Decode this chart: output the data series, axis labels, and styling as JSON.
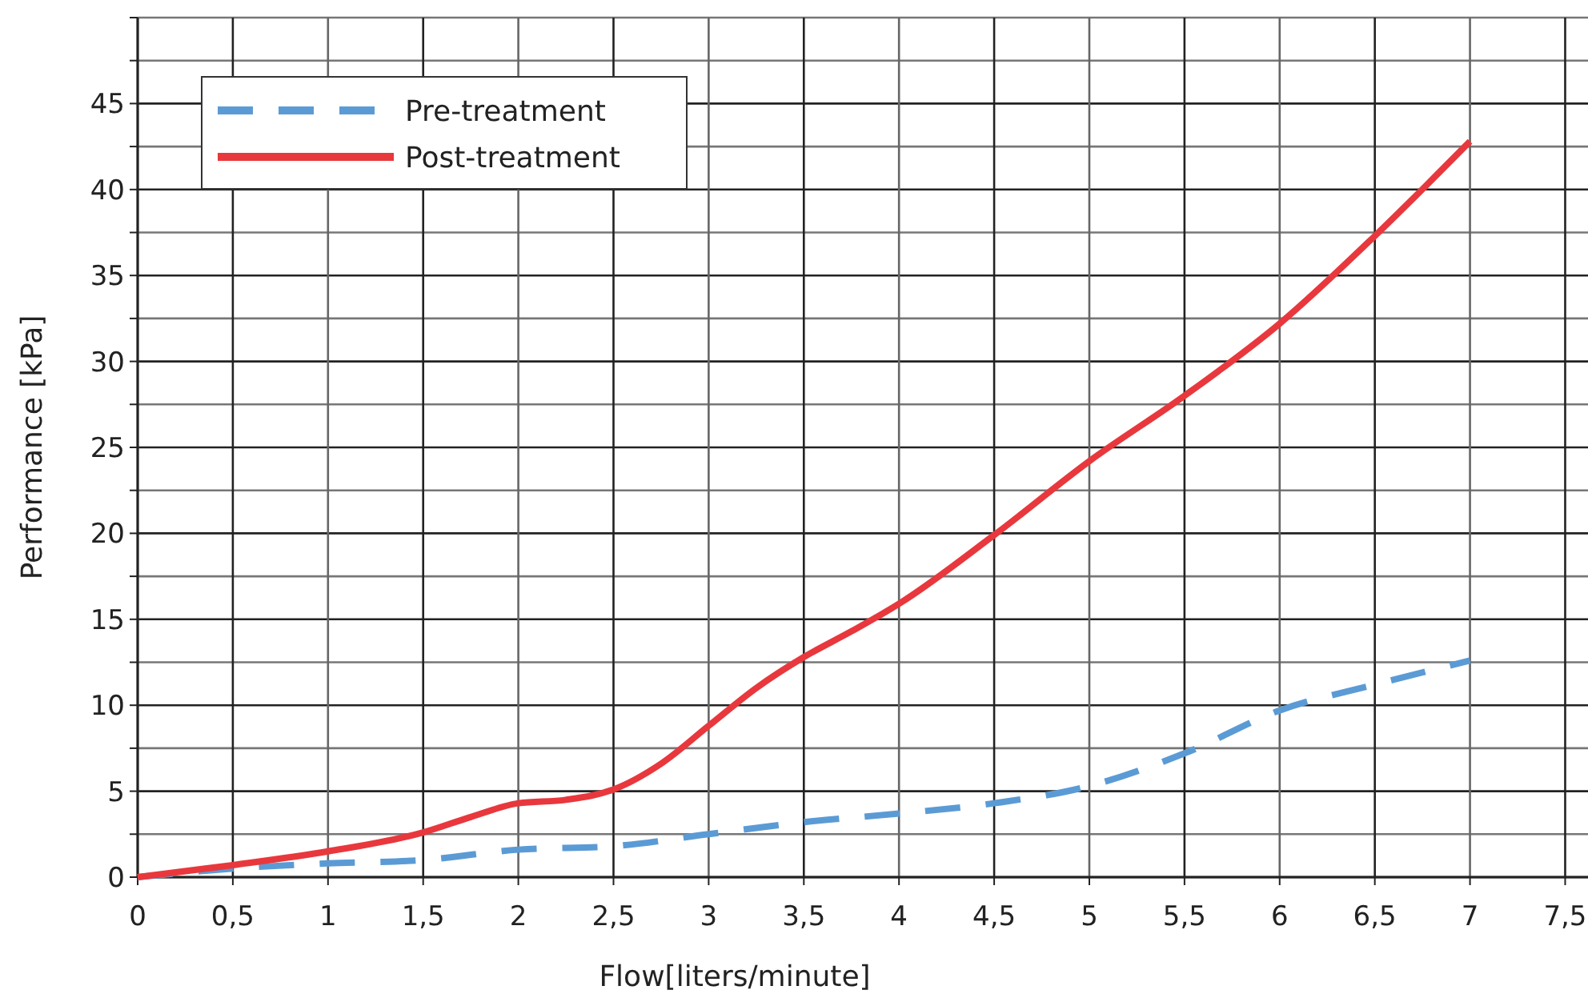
{
  "chart_data": {
    "type": "line",
    "xlabel": "Flow[liters/minute]",
    "ylabel": "Performance [kPa]",
    "xlim": [
      0,
      7.62
    ],
    "xticks": [
      0,
      {
        "value": 0.5,
        "label": "0,5"
      },
      1,
      {
        "value": 1.5,
        "label": "1,5"
      },
      2,
      {
        "value": 2.5,
        "label": "2,5"
      },
      3,
      {
        "value": 3.5,
        "label": "3,5"
      },
      4,
      {
        "value": 4.5,
        "label": "4,5"
      },
      5,
      {
        "value": 5.5,
        "label": "5,5"
      },
      6,
      {
        "value": 6.5,
        "label": "6,5"
      },
      7,
      {
        "value": 7.5,
        "label": "7,5"
      }
    ],
    "ylim": [
      0,
      50
    ],
    "yticks": [
      0,
      {
        "value": 2.5,
        "label": null
      },
      5,
      {
        "value": 7.5,
        "label": null
      },
      10,
      {
        "value": 12.5,
        "label": null
      },
      15,
      {
        "value": 17.5,
        "label": null
      },
      20,
      {
        "value": 22.5,
        "label": null
      },
      25,
      {
        "value": 27.5,
        "label": null
      },
      30,
      {
        "value": 32.5,
        "label": null
      },
      35,
      {
        "value": 37.5,
        "label": null
      },
      40,
      {
        "value": 42.5,
        "label": null
      },
      45,
      {
        "value": 47.5,
        "label": null
      },
      {
        "value": 50,
        "label": null
      }
    ],
    "grid": true,
    "legend": "top left",
    "marker": "none",
    "series": [
      {
        "name": "Pre-treatment",
        "color": "#5b9bd5",
        "line_style": "dashed",
        "x": [
          0,
          0.5,
          1,
          1.5,
          2,
          2.5,
          3,
          3.5,
          4,
          4.5,
          5,
          5.5,
          6,
          6.5,
          7
        ],
        "values": [
          0,
          0.5,
          0.8,
          1,
          1.6,
          1.8,
          2.5,
          3.2,
          3.7,
          4.3,
          5.3,
          7.2,
          9.7,
          11.2,
          12.6
        ]
      },
      {
        "name": "Post-treatment",
        "color": "#e8383d",
        "line_style": "solid",
        "x": [
          0,
          0.5,
          1,
          1.5,
          1.75,
          2,
          2.25,
          2.5,
          2.75,
          3,
          3.25,
          3.5,
          3.75,
          4,
          4.5,
          5,
          5.5,
          6,
          6.5,
          7
        ],
        "values": [
          0,
          0.7,
          1.5,
          2.6,
          3.5,
          4.3,
          4.5,
          5.1,
          6.6,
          8.8,
          11,
          12.8,
          14.3,
          15.9,
          19.9,
          24.2,
          28,
          32.2,
          37.3,
          42.8
        ]
      }
    ]
  }
}
